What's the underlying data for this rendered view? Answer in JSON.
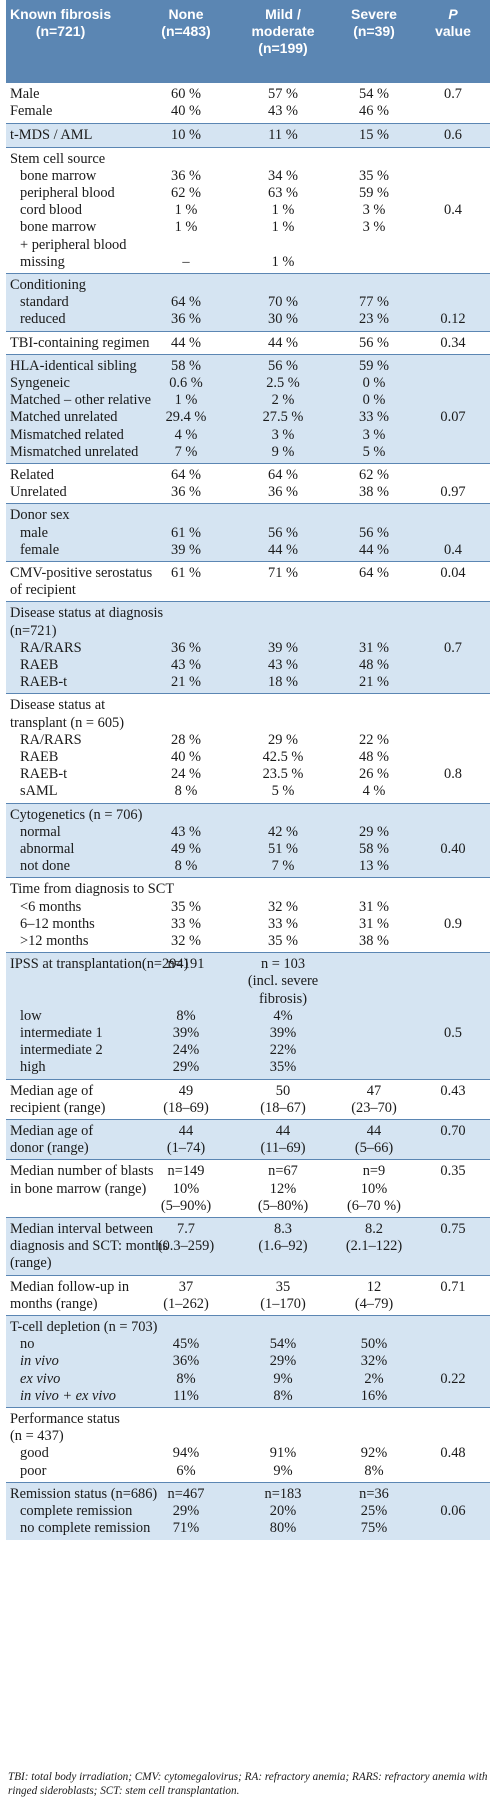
{
  "header": {
    "col0": [
      "Known fibrosis",
      "(n=721)"
    ],
    "col1": [
      "None",
      "(n=483)"
    ],
    "col2": [
      "Mild /",
      "moderate",
      "(n=199)"
    ],
    "col3": [
      "Severe",
      "(n=39)"
    ],
    "col4": [
      "P",
      "value"
    ]
  },
  "groups": [
    {
      "shade": false,
      "rows": [
        {
          "label": "Male",
          "c1": "60 %",
          "c2": "57 %",
          "c3": "54 %",
          "p": "0.7"
        },
        {
          "label": "Female",
          "c1": "40 %",
          "c2": "43 %",
          "c3": "46 %",
          "p": ""
        }
      ]
    },
    {
      "shade": true,
      "rows": [
        {
          "label": "t-MDS / AML",
          "c1": "10 %",
          "c2": "11 %",
          "c3": "15 %",
          "p": "0.6"
        }
      ]
    },
    {
      "shade": false,
      "rows": [
        {
          "label": "Stem cell source",
          "c1": "",
          "c2": "",
          "c3": "",
          "p": ""
        },
        {
          "label": "bone marrow",
          "indent": true,
          "c1": "36 %",
          "c2": "34 %",
          "c3": "35 %",
          "p": ""
        },
        {
          "label": "peripheral blood",
          "indent": true,
          "c1": "62 %",
          "c2": "63 %",
          "c3": "59 %",
          "p": ""
        },
        {
          "label": "cord blood",
          "indent": true,
          "c1": "1 %",
          "c2": "1 %",
          "c3": "3 %",
          "p": "0.4"
        },
        {
          "label": "bone marrow",
          "indent": true,
          "c1": "1 %",
          "c2": "1 %",
          "c3": "3 %",
          "p": ""
        },
        {
          "label": "+ peripheral blood",
          "indent": true,
          "c1": "",
          "c2": "",
          "c3": "",
          "p": ""
        },
        {
          "label": "missing",
          "indent": true,
          "c1": "–",
          "c2": "1 %",
          "c3": "",
          "p": ""
        }
      ]
    },
    {
      "shade": true,
      "rows": [
        {
          "label": "Conditioning",
          "c1": "",
          "c2": "",
          "c3": "",
          "p": ""
        },
        {
          "label": "standard",
          "indent": true,
          "c1": "64 %",
          "c2": "70 %",
          "c3": "77 %",
          "p": ""
        },
        {
          "label": "reduced",
          "indent": true,
          "c1": "36 %",
          "c2": "30 %",
          "c3": "23 %",
          "p": "0.12"
        }
      ]
    },
    {
      "shade": false,
      "rows": [
        {
          "label": "TBI-containing regimen",
          "c1": "44 %",
          "c2": "44 %",
          "c3": "56 %",
          "p": "0.34"
        }
      ]
    },
    {
      "shade": true,
      "rows": [
        {
          "label": "HLA-identical sibling",
          "c1": "58 %",
          "c2": "56 %",
          "c3": "59 %",
          "p": ""
        },
        {
          "label": "Syngeneic",
          "c1": "0.6 %",
          "c2": "2.5 %",
          "c3": "0 %",
          "p": ""
        },
        {
          "label": "Matched – other relative",
          "c1": "1 %",
          "c2": "2 %",
          "c3": "0 %",
          "p": ""
        },
        {
          "label": "Matched unrelated",
          "c1": "29.4 %",
          "c2": "27.5 %",
          "c3": "33 %",
          "p": "0.07"
        },
        {
          "label": "Mismatched related",
          "c1": "4 %",
          "c2": "3 %",
          "c3": "3 %",
          "p": ""
        },
        {
          "label": "Mismatched unrelated",
          "c1": "7 %",
          "c2": "9 %",
          "c3": "5 %",
          "p": ""
        }
      ]
    },
    {
      "shade": false,
      "rows": [
        {
          "label": "Related",
          "c1": "64 %",
          "c2": "64 %",
          "c3": "62 %",
          "p": ""
        },
        {
          "label": "Unrelated",
          "c1": "36 %",
          "c2": "36 %",
          "c3": "38 %",
          "p": "0.97"
        }
      ]
    },
    {
      "shade": true,
      "rows": [
        {
          "label": "Donor sex",
          "c1": "",
          "c2": "",
          "c3": "",
          "p": ""
        },
        {
          "label": "male",
          "indent": true,
          "c1": "61 %",
          "c2": "56 %",
          "c3": "56 %",
          "p": ""
        },
        {
          "label": "female",
          "indent": true,
          "c1": "39 %",
          "c2": "44 %",
          "c3": "44 %",
          "p": "0.4"
        }
      ]
    },
    {
      "shade": false,
      "rows": [
        {
          "label": "CMV-positive serostatus",
          "c1": "61 %",
          "c2": "71 %",
          "c3": "64 %",
          "p": "0.04"
        },
        {
          "label": "of recipient",
          "c1": "",
          "c2": "",
          "c3": "",
          "p": ""
        }
      ]
    },
    {
      "shade": true,
      "rows": [
        {
          "label": "Disease status at diagnosis",
          "c1": "",
          "c2": "",
          "c3": "",
          "p": ""
        },
        {
          "label": "(n=721)",
          "c1": "",
          "c2": "",
          "c3": "",
          "p": ""
        },
        {
          "label": "RA/RARS",
          "indent": true,
          "c1": "36 %",
          "c2": "39 %",
          "c3": "31 %",
          "p": "0.7"
        },
        {
          "label": "RAEB",
          "indent": true,
          "c1": "43 %",
          "c2": "43 %",
          "c3": "48 %",
          "p": ""
        },
        {
          "label": "RAEB-t",
          "indent": true,
          "c1": "21 %",
          "c2": "18 %",
          "c3": "21 %",
          "p": ""
        }
      ]
    },
    {
      "shade": false,
      "rows": [
        {
          "label": "Disease status at",
          "c1": "",
          "c2": "",
          "c3": "",
          "p": ""
        },
        {
          "label": "transplant (n = 605)",
          "c1": "",
          "c2": "",
          "c3": "",
          "p": ""
        },
        {
          "label": "RA/RARS",
          "indent": true,
          "c1": "28 %",
          "c2": "29 %",
          "c3": "22 %",
          "p": ""
        },
        {
          "label": "RAEB",
          "indent": true,
          "c1": "40 %",
          "c2": "42.5 %",
          "c3": "48 %",
          "p": ""
        },
        {
          "label": "RAEB-t",
          "indent": true,
          "c1": "24 %",
          "c2": "23.5 %",
          "c3": "26 %",
          "p": "0.8"
        },
        {
          "label": "sAML",
          "indent": true,
          "c1": "8 %",
          "c2": "5 %",
          "c3": "4 %",
          "p": ""
        }
      ]
    },
    {
      "shade": true,
      "rows": [
        {
          "label": "Cytogenetics (n = 706)",
          "c1": "",
          "c2": "",
          "c3": "",
          "p": ""
        },
        {
          "label": "normal",
          "indent": true,
          "c1": "43 %",
          "c2": "42 %",
          "c3": "29 %",
          "p": ""
        },
        {
          "label": "abnormal",
          "indent": true,
          "c1": "49 %",
          "c2": "51 %",
          "c3": "58 %",
          "p": "0.40"
        },
        {
          "label": "not done",
          "indent": true,
          "c1": "8 %",
          "c2": "7 %",
          "c3": "13 %",
          "p": ""
        }
      ]
    },
    {
      "shade": false,
      "rows": [
        {
          "label": "Time from diagnosis to SCT",
          "c1": "",
          "c2": "",
          "c3": "",
          "p": ""
        },
        {
          "label": "<6 months",
          "indent": true,
          "c1": "35 %",
          "c2": "32 %",
          "c3": "31 %",
          "p": ""
        },
        {
          "label": "6–12 months",
          "indent": true,
          "c1": "33 %",
          "c2": "33 %",
          "c3": "31 %",
          "p": "0.9"
        },
        {
          "label": ">12 months",
          "indent": true,
          "c1": "32 %",
          "c2": "35 %",
          "c3": "38 %",
          "p": ""
        }
      ]
    },
    {
      "shade": true,
      "rows": [
        {
          "label": "IPSS at transplantation(n=294)",
          "c1": "n=191",
          "c2": "n = 103",
          "c3": "",
          "p": ""
        },
        {
          "label": "",
          "c1": "",
          "c2": "(incl. severe",
          "c3": "",
          "p": ""
        },
        {
          "label": "",
          "c1": "",
          "c2": "fibrosis)",
          "c3": "",
          "p": ""
        },
        {
          "label": "low",
          "indent": true,
          "c1": "8%",
          "c2": "4%",
          "c3": "",
          "p": ""
        },
        {
          "label": "intermediate 1",
          "indent": true,
          "c1": "39%",
          "c2": "39%",
          "c3": "",
          "p": "0.5"
        },
        {
          "label": "intermediate 2",
          "indent": true,
          "c1": "24%",
          "c2": "22%",
          "c3": "",
          "p": ""
        },
        {
          "label": "high",
          "indent": true,
          "c1": "29%",
          "c2": "35%",
          "c3": "",
          "p": ""
        }
      ]
    },
    {
      "shade": false,
      "rows": [
        {
          "label": "Median age of",
          "c1": "49",
          "c2": "50",
          "c3": "47",
          "p": "0.43"
        },
        {
          "label": "recipient (range)",
          "c1": "(18–69)",
          "c2": "(18–67)",
          "c3": "(23–70)",
          "p": ""
        }
      ]
    },
    {
      "shade": true,
      "rows": [
        {
          "label": "Median age of",
          "c1": "44",
          "c2": "44",
          "c3": "44",
          "p": "0.70"
        },
        {
          "label": "donor (range)",
          "c1": "(1–74)",
          "c2": "(11–69)",
          "c3": "(5–66)",
          "p": ""
        }
      ]
    },
    {
      "shade": false,
      "rows": [
        {
          "label": "Median number of blasts",
          "c1": "n=149",
          "c2": "n=67",
          "c3": "n=9",
          "p": "0.35"
        },
        {
          "label": "in bone marrow (range)",
          "c1": "10%",
          "c2": "12%",
          "c3": "10%",
          "p": ""
        },
        {
          "label": "",
          "c1": "(5–90%)",
          "c2": "(5–80%)",
          "c3": "(6–70 %)",
          "p": ""
        }
      ]
    },
    {
      "shade": true,
      "rows": [
        {
          "label": "Median interval between",
          "c1": "7.7",
          "c2": "8.3",
          "c3": "8.2",
          "p": "0.75"
        },
        {
          "label": "diagnosis and SCT: months",
          "c1": "(0.3–259)",
          "c2": "(1.6–92)",
          "c3": "(2.1–122)",
          "p": ""
        },
        {
          "label": "(range)",
          "c1": "",
          "c2": "",
          "c3": "",
          "p": ""
        }
      ]
    },
    {
      "shade": false,
      "rows": [
        {
          "label": "Median follow-up in",
          "c1": "37",
          "c2": "35",
          "c3": "12",
          "p": "0.71"
        },
        {
          "label": "months (range)",
          "c1": "(1–262)",
          "c2": "(1–170)",
          "c3": "(4–79)",
          "p": ""
        }
      ]
    },
    {
      "shade": true,
      "rows": [
        {
          "label": "T-cell depletion (n = 703)",
          "c1": "",
          "c2": "",
          "c3": "",
          "p": ""
        },
        {
          "label": "no",
          "indent": true,
          "c1": "45%",
          "c2": "54%",
          "c3": "50%",
          "p": ""
        },
        {
          "label": "in vivo",
          "indent": true,
          "italic": true,
          "c1": "36%",
          "c2": "29%",
          "c3": "32%",
          "p": ""
        },
        {
          "label": "ex vivo",
          "indent": true,
          "italic": true,
          "c1": "8%",
          "c2": "9%",
          "c3": "2%",
          "p": "0.22"
        },
        {
          "label": "in vivo + ex vivo",
          "indent": true,
          "italic": true,
          "c1": "11%",
          "c2": "8%",
          "c3": "16%",
          "p": ""
        }
      ]
    },
    {
      "shade": false,
      "rows": [
        {
          "label": "Performance status",
          "c1": "",
          "c2": "",
          "c3": "",
          "p": ""
        },
        {
          "label": "(n = 437)",
          "c1": "",
          "c2": "",
          "c3": "",
          "p": ""
        },
        {
          "label": "good",
          "indent": true,
          "c1": "94%",
          "c2": "91%",
          "c3": "92%",
          "p": "0.48"
        },
        {
          "label": "poor",
          "indent": true,
          "c1": "6%",
          "c2": "9%",
          "c3": "8%",
          "p": ""
        }
      ]
    },
    {
      "shade": true,
      "rows": [
        {
          "label": "Remission status (n=686)",
          "c1": "n=467",
          "c2": "n=183",
          "c3": "n=36",
          "p": ""
        },
        {
          "label": "complete remission",
          "indent": true,
          "c1": "29%",
          "c2": "20%",
          "c3": "25%",
          "p": "0.06"
        },
        {
          "label": "no complete remission",
          "indent": true,
          "c1": "71%",
          "c2": "80%",
          "c3": "75%",
          "p": ""
        }
      ]
    }
  ],
  "footnote": "TBI: total body irradiation; CMV: cytomegalovirus; RA: refractory anemia; RARS: refractory anemia with ringed sideroblasts; SCT: stem cell transplantation.",
  "colors": {
    "header_bg": "#5b86b3",
    "shade_bg": "#d5e4f2",
    "header_text": "#ffffff"
  }
}
